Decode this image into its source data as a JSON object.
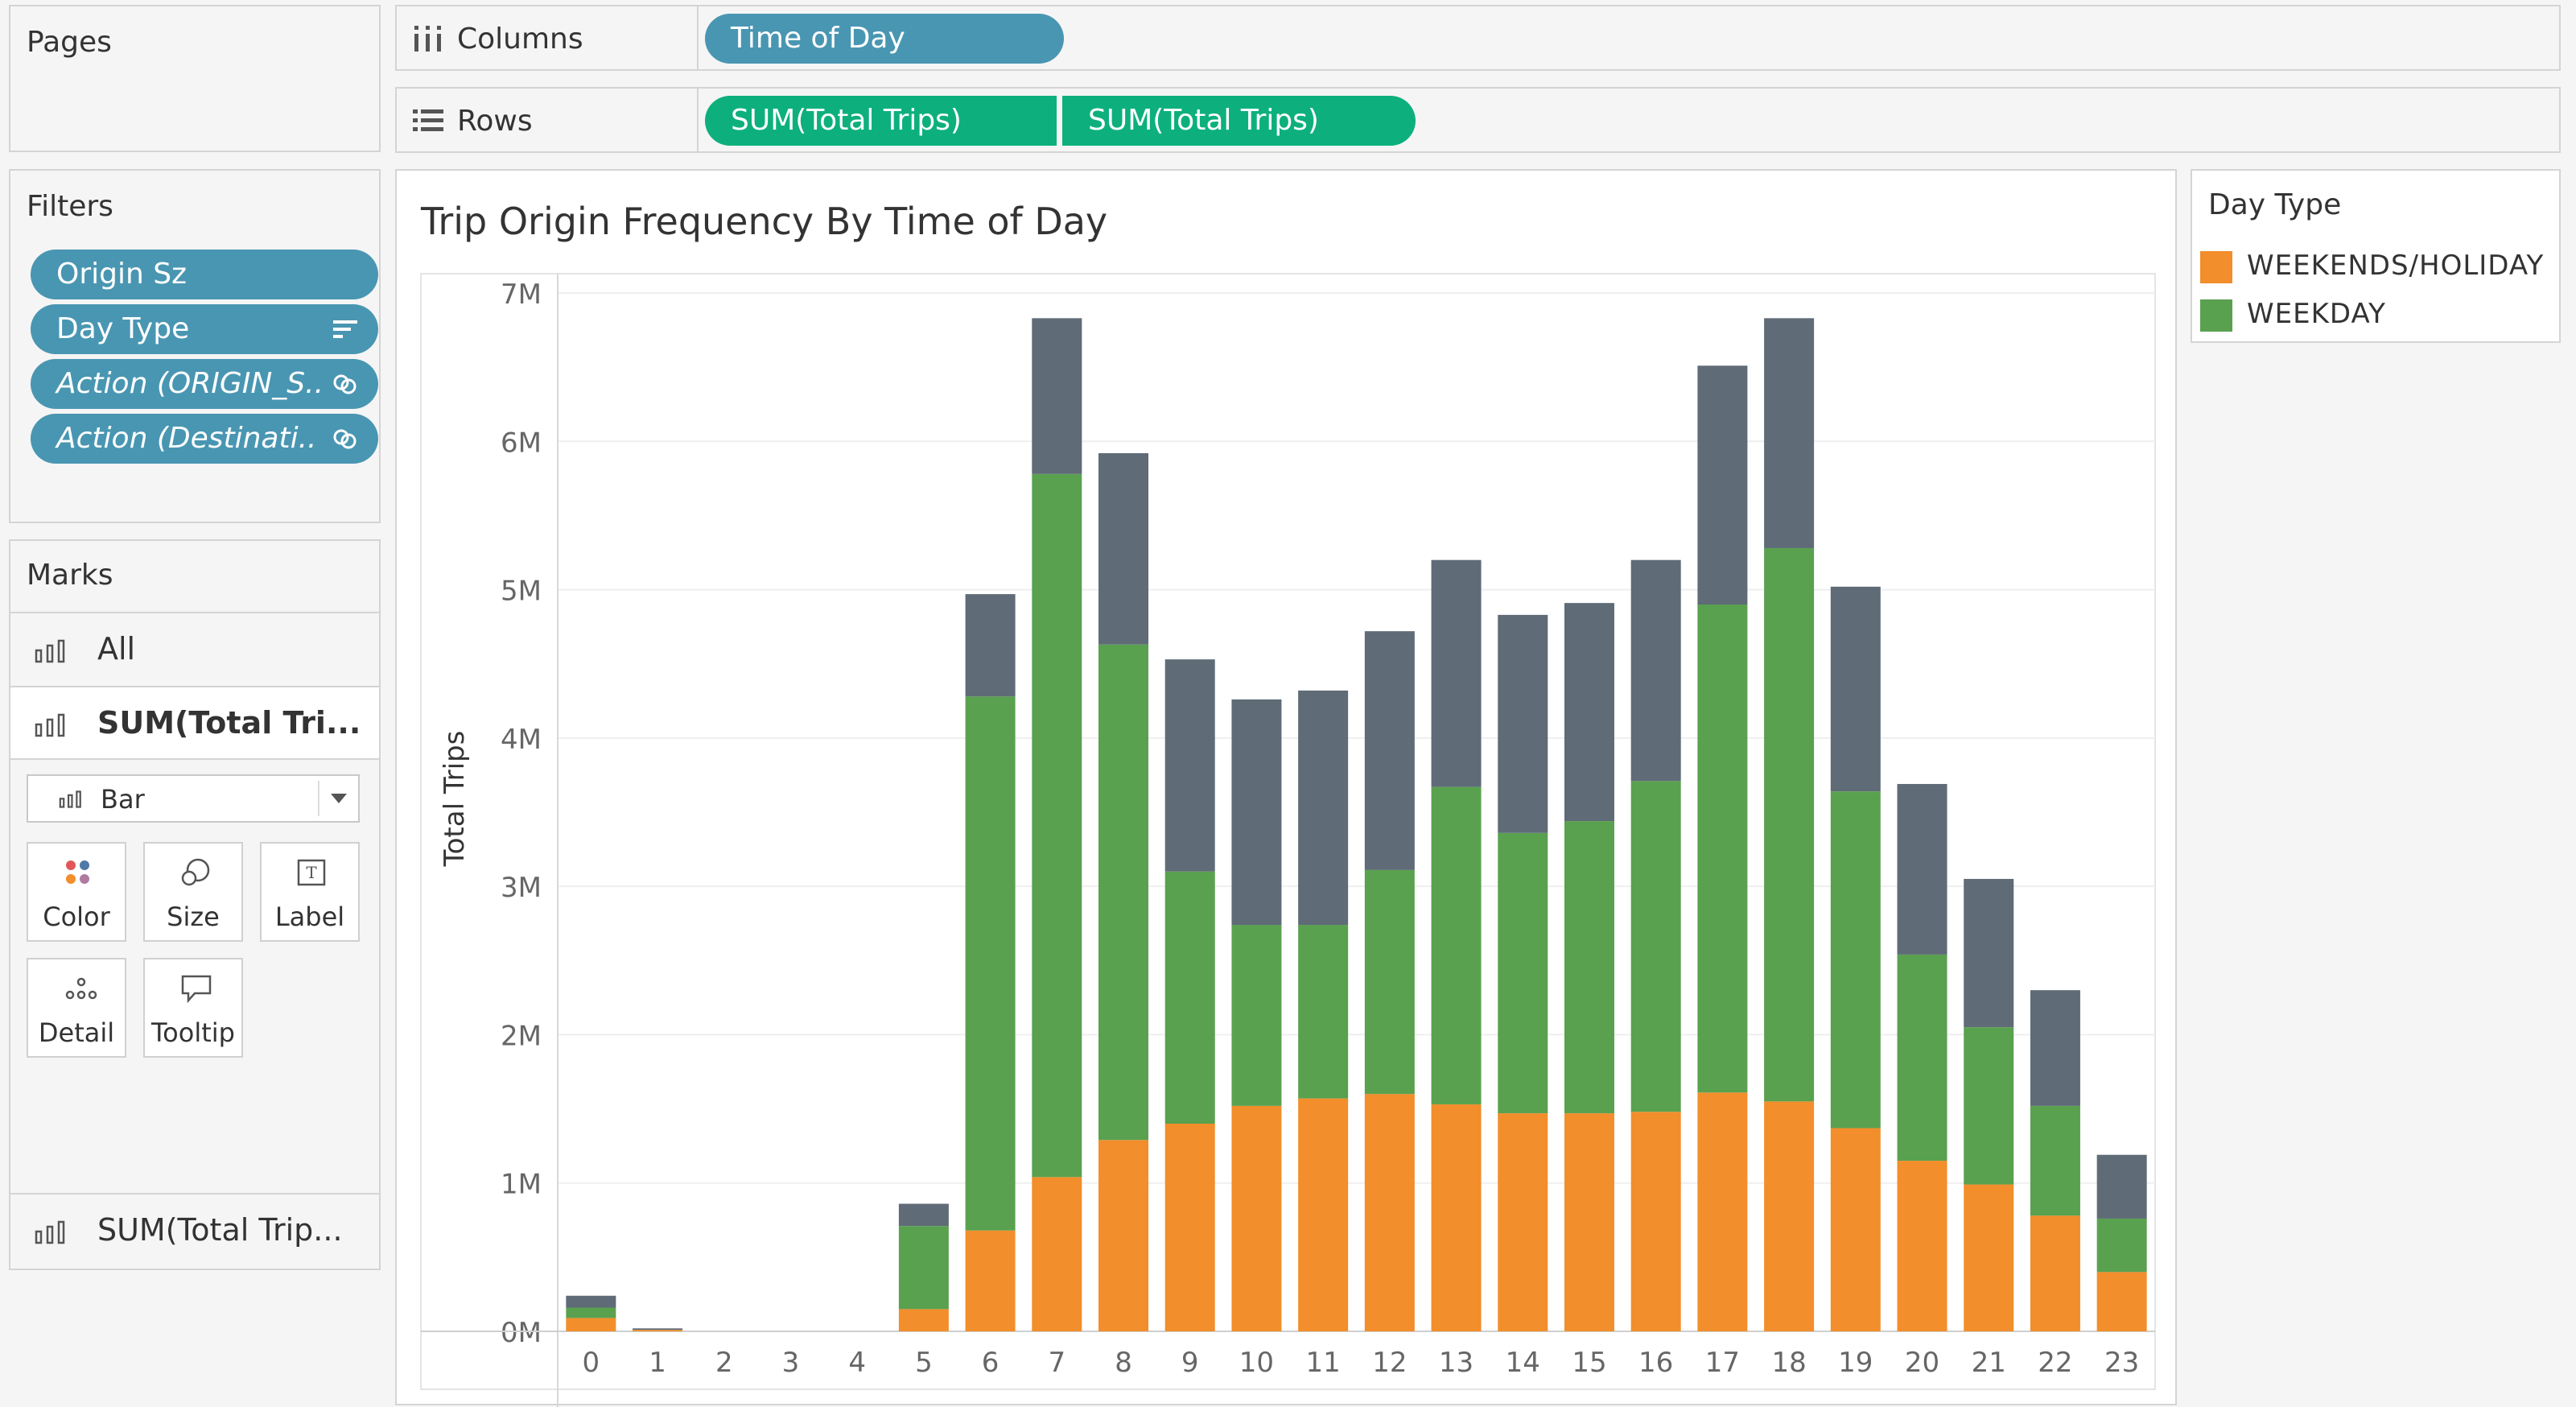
{
  "pages": {
    "title": "Pages"
  },
  "shelves": {
    "columns": {
      "label": "Columns",
      "pills": [
        "Time of Day"
      ]
    },
    "rows": {
      "label": "Rows",
      "pills": [
        "SUM(Total Trips)",
        "SUM(Total Trips)"
      ]
    }
  },
  "filters": {
    "title": "Filters",
    "items": [
      "Origin Sz",
      "Day Type",
      "Action (ORIGIN_S..",
      "Action (Destinati.."
    ]
  },
  "marks": {
    "title": "Marks",
    "all_label": "All",
    "layer1_label": "SUM(Total Tri...",
    "mark_type": "Bar",
    "cards": [
      "Color",
      "Size",
      "Label",
      "Detail",
      "Tooltip"
    ],
    "layer2_label": "SUM(Total Trip..."
  },
  "legend": {
    "title": "Day Type",
    "items": [
      {
        "label": "WEEKENDS/HOLIDAY",
        "color": "#f28e2b"
      },
      {
        "label": "WEEKDAY",
        "color": "#59a14f"
      }
    ]
  },
  "colors": {
    "pill_blue": "#4996b2",
    "pill_green": "#0db07c",
    "upper_bar": "#5f6b77"
  },
  "chart_data": {
    "type": "bar",
    "title": "Trip Origin Frequency By Time of Day",
    "ylabel": "Total Trips",
    "xlabel": "",
    "categories": [
      "0",
      "1",
      "2",
      "3",
      "4",
      "5",
      "6",
      "7",
      "8",
      "9",
      "10",
      "11",
      "12",
      "13",
      "14",
      "15",
      "16",
      "17",
      "18",
      "19",
      "20",
      "21",
      "22",
      "23"
    ],
    "ylim": [
      0,
      7000000
    ],
    "yticks": [
      "0M",
      "1M",
      "2M",
      "3M",
      "4M",
      "5M",
      "6M",
      "7M"
    ],
    "series": [
      {
        "name": "WEEKENDS/HOLIDAY",
        "color": "#f28e2b",
        "values": [
          90000,
          10000,
          0,
          0,
          0,
          150000,
          680000,
          1040000,
          1290000,
          1400000,
          1520000,
          1570000,
          1600000,
          1530000,
          1470000,
          1470000,
          1480000,
          1610000,
          1550000,
          1370000,
          1150000,
          990000,
          780000,
          400000
        ]
      },
      {
        "name": "WEEKDAY",
        "color": "#59a14f",
        "values": [
          70000,
          0,
          0,
          0,
          0,
          560000,
          3600000,
          4740000,
          3340000,
          1700000,
          1220000,
          1170000,
          1510000,
          2140000,
          1890000,
          1970000,
          2230000,
          3290000,
          3730000,
          2270000,
          1390000,
          1060000,
          740000,
          360000
        ]
      },
      {
        "color": "#5f6b77",
        "values": [
          80000,
          10000,
          0,
          0,
          0,
          150000,
          690000,
          1050000,
          1290000,
          1430000,
          1520000,
          1580000,
          1610000,
          1530000,
          1470000,
          1470000,
          1490000,
          1610000,
          1550000,
          1380000,
          1150000,
          1000000,
          780000,
          430000
        ]
      }
    ]
  }
}
